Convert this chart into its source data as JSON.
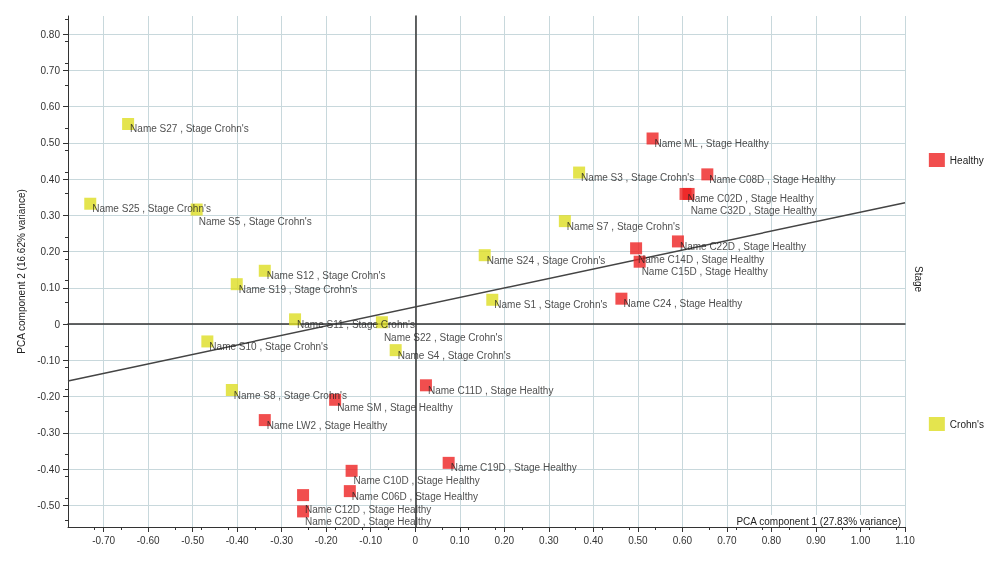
{
  "chart_data": {
    "type": "scatter",
    "xlabel": "PCA component 1 (27.83% variance)",
    "ylabel": "PCA component 2 (16.62% variance)",
    "legend_title": "Stage",
    "legend": "right",
    "grid": true,
    "marker": "square",
    "xlim": [
      -0.78,
      1.1
    ],
    "ylim": [
      -0.56,
      0.85
    ],
    "xticks": [
      {
        "value": -0.7,
        "label": "-0.70"
      },
      {
        "value": -0.6,
        "label": "-0.60"
      },
      {
        "value": -0.5,
        "label": "-0.50"
      },
      {
        "value": -0.4,
        "label": "-0.40"
      },
      {
        "value": -0.3,
        "label": "-0.30"
      },
      {
        "value": -0.2,
        "label": "-0.20"
      },
      {
        "value": -0.1,
        "label": "-0.10"
      },
      0,
      {
        "value": 0.1,
        "label": "0.10"
      },
      {
        "value": 0.2,
        "label": "0.20"
      },
      {
        "value": 0.3,
        "label": "0.30"
      },
      {
        "value": 0.4,
        "label": "0.40"
      },
      {
        "value": 0.5,
        "label": "0.50"
      },
      {
        "value": 0.6,
        "label": "0.60"
      },
      {
        "value": 0.7,
        "label": "0.70"
      },
      {
        "value": 0.8,
        "label": "0.80"
      },
      {
        "value": 0.9,
        "label": "0.90"
      },
      {
        "value": 1.0,
        "label": "1.00"
      },
      {
        "value": 1.1,
        "label": "1.10"
      }
    ],
    "yticks": [
      {
        "value": -0.5,
        "label": "-0.50"
      },
      {
        "value": -0.4,
        "label": "-0.40"
      },
      {
        "value": -0.3,
        "label": "-0.30"
      },
      {
        "value": -0.2,
        "label": "-0.20"
      },
      {
        "value": -0.1,
        "label": "-0.10"
      },
      0,
      {
        "value": 0.1,
        "label": "0.10"
      },
      {
        "value": 0.2,
        "label": "0.20"
      },
      {
        "value": 0.3,
        "label": "0.30"
      },
      {
        "value": 0.4,
        "label": "0.40"
      },
      {
        "value": 0.5,
        "label": "0.50"
      },
      {
        "value": 0.6,
        "label": "0.60"
      },
      {
        "value": 0.7,
        "label": "0.70"
      },
      {
        "value": 0.8,
        "label": "0.80"
      }
    ],
    "series": [
      {
        "name": "Healthy",
        "color": "#ee2222",
        "x": [
          0.533,
          0.656,
          0.607,
          0.614,
          0.59,
          0.496,
          0.504,
          0.463,
          0.024,
          -0.18,
          -0.338,
          0.075,
          -0.143,
          -0.147,
          -0.252,
          -0.252
        ],
        "values": [
          0.512,
          0.413,
          0.359,
          0.359,
          0.228,
          0.209,
          0.172,
          0.07,
          -0.169,
          -0.209,
          -0.265,
          -0.383,
          -0.405,
          -0.461,
          -0.472,
          -0.517
        ],
        "value_labels": [
          "Name ML , Stage Healthy",
          "Name C08D , Stage Healthy",
          "Name C02D , Stage Healthy",
          "Name C32D , Stage Healthy",
          "Name C22D , Stage Healthy",
          "Name C14D , Stage Healthy",
          "Name C15D , Stage Healthy",
          "Name C24 , Stage Healthy",
          "Name C11D , Stage Healthy",
          "Name SM , Stage Healthy",
          "Name LW2 , Stage Healthy",
          "Name C19D , Stage Healthy",
          "Name C10D , Stage Healthy",
          "Name C06D , Stage Healthy",
          "Name C12D , Stage Healthy",
          "Name C20D , Stage Healthy"
        ]
      },
      {
        "name": "Crohn's",
        "color": "#dddd22",
        "x": [
          -0.645,
          -0.73,
          -0.491,
          -0.338,
          -0.401,
          -0.27,
          -0.075,
          -0.467,
          -0.044,
          -0.412,
          0.156,
          0.173,
          0.336,
          0.368
        ],
        "values": [
          0.552,
          0.332,
          0.316,
          0.147,
          0.11,
          0.013,
          0.005,
          -0.048,
          -0.072,
          -0.182,
          0.19,
          0.067,
          0.284,
          0.418
        ],
        "value_labels": [
          "Name S27 , Stage Crohn's",
          "Name S25 , Stage Crohn's",
          "Name S5 , Stage Crohn's",
          "Name S12 , Stage Crohn's",
          "Name S19 , Stage Crohn's",
          "Name S11 , Stage Crohn's",
          "Name S22 , Stage Crohn's",
          "Name S10 , Stage Crohn's",
          "Name S4 , Stage Crohn's",
          "Name S8 , Stage Crohn's",
          "Name S24 , Stage Crohn's",
          "Name S1 , Stage Crohn's",
          "Name S7 , Stage Crohn's",
          "Name S3 , Stage Crohn's"
        ]
      },
      {
        "type": "line",
        "marker": "none",
        "color": "#444444",
        "x": [
          -0.78,
          1.1
        ],
        "values": [
          -0.157,
          0.335
        ]
      }
    ]
  }
}
